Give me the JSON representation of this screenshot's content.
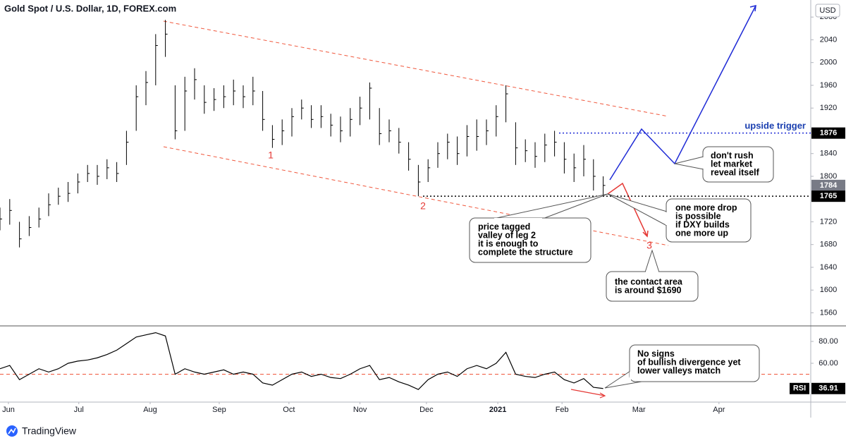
{
  "chart_data": [
    {
      "type": "ohlc",
      "title": "Gold Spot / U.S. Dollar, 1D, FOREX.com",
      "currency": "USD",
      "color": "#000000",
      "x": [
        0,
        3,
        6,
        9,
        12,
        15,
        18,
        21,
        24,
        27,
        30,
        33,
        36,
        39,
        42,
        45,
        48,
        51,
        54,
        57,
        60,
        63,
        66,
        69,
        72,
        75,
        78,
        81,
        84,
        87,
        90,
        93,
        96,
        99,
        102,
        105,
        108,
        111,
        114,
        117,
        120,
        123,
        126,
        129,
        132,
        135,
        138,
        141,
        144,
        147,
        150,
        153,
        156,
        159,
        162,
        165,
        168,
        171,
        174,
        177,
        180,
        183,
        186
      ],
      "high": [
        1745,
        1760,
        1720,
        1730,
        1745,
        1770,
        1780,
        1790,
        1805,
        1820,
        1820,
        1830,
        1825,
        1880,
        1960,
        1985,
        2050,
        2075,
        1960,
        1975,
        1990,
        1960,
        1955,
        1960,
        1970,
        1960,
        1975,
        1950,
        1890,
        1900,
        1920,
        1935,
        1925,
        1925,
        1910,
        1905,
        1920,
        1940,
        1965,
        1920,
        1900,
        1885,
        1860,
        1820,
        1830,
        1860,
        1875,
        1870,
        1890,
        1900,
        1900,
        1925,
        1960,
        1895,
        1865,
        1860,
        1875,
        1880,
        1860,
        1840,
        1855,
        1830,
        1800
      ],
      "low": [
        1705,
        1715,
        1675,
        1695,
        1710,
        1730,
        1750,
        1755,
        1770,
        1790,
        1785,
        1795,
        1790,
        1820,
        1880,
        1925,
        1960,
        2010,
        1865,
        1880,
        1935,
        1910,
        1915,
        1920,
        1925,
        1920,
        1925,
        1880,
        1850,
        1855,
        1870,
        1900,
        1885,
        1885,
        1870,
        1860,
        1870,
        1890,
        1900,
        1855,
        1860,
        1840,
        1810,
        1765,
        1790,
        1815,
        1830,
        1820,
        1835,
        1845,
        1855,
        1870,
        1895,
        1820,
        1825,
        1815,
        1825,
        1835,
        1805,
        1790,
        1800,
        1775,
        1765
      ],
      "close": [
        1725,
        1740,
        1690,
        1710,
        1725,
        1750,
        1765,
        1770,
        1790,
        1805,
        1800,
        1815,
        1805,
        1860,
        1940,
        1965,
        2030,
        2050,
        1880,
        1950,
        1970,
        1930,
        1935,
        1940,
        1950,
        1940,
        1950,
        1900,
        1865,
        1880,
        1905,
        1920,
        1900,
        1905,
        1890,
        1880,
        1900,
        1920,
        1955,
        1875,
        1880,
        1860,
        1830,
        1790,
        1815,
        1840,
        1860,
        1840,
        1870,
        1870,
        1880,
        1905,
        1945,
        1850,
        1845,
        1835,
        1855,
        1860,
        1830,
        1815,
        1830,
        1800,
        1784
      ],
      "xlim": [
        0,
        250
      ],
      "xticks": [
        {
          "value": 2.6,
          "label": "Jun"
        },
        {
          "value": 24.3,
          "label": "Jul"
        },
        {
          "value": 46.3,
          "label": "Aug"
        },
        {
          "value": 67.6,
          "label": "Sep"
        },
        {
          "value": 89.1,
          "label": "Oct"
        },
        {
          "value": 111,
          "label": "Nov"
        },
        {
          "value": 131.5,
          "label": "Dec"
        },
        {
          "value": 153.5,
          "label": "2021"
        },
        {
          "value": 173.3,
          "label": "Feb"
        },
        {
          "value": 197,
          "label": "Mar"
        },
        {
          "value": 221.7,
          "label": "Apr"
        }
      ],
      "ylim": [
        1537,
        2110
      ],
      "yticks": [
        1560,
        1600,
        1640,
        1680,
        1720,
        1800,
        1840,
        1920,
        1960,
        2000,
        2040,
        2080
      ],
      "last_price": 1784,
      "upside_trigger": {
        "label": "upside trigger",
        "value": 1876
      },
      "valley_level": 1765,
      "wave_labels": [
        "1",
        "2",
        "3"
      ],
      "notes": {
        "valley": [
          "price tagged",
          "valley of leg 2",
          "it is enough to",
          "complete the structure"
        ],
        "drop": [
          "one more drop",
          "is possible",
          "if DXY builds",
          "one more up"
        ],
        "contact": [
          "the contact area",
          "is around $1690"
        ],
        "rush": [
          "don't rush",
          "let market",
          "reveal itself"
        ]
      }
    },
    {
      "type": "line",
      "name": "RSI",
      "color": "#000000",
      "x": [
        0,
        3,
        6,
        9,
        12,
        15,
        18,
        21,
        24,
        27,
        30,
        33,
        36,
        39,
        42,
        45,
        48,
        51,
        54,
        57,
        60,
        63,
        66,
        69,
        72,
        75,
        78,
        81,
        84,
        87,
        90,
        93,
        96,
        99,
        102,
        105,
        108,
        111,
        114,
        117,
        120,
        123,
        126,
        129,
        132,
        135,
        138,
        141,
        144,
        147,
        150,
        153,
        156,
        159,
        162,
        165,
        168,
        171,
        174,
        177,
        180,
        183,
        186
      ],
      "values": [
        55,
        58,
        45,
        50,
        55,
        52,
        55,
        60,
        62,
        63,
        65,
        68,
        72,
        78,
        84,
        86,
        88,
        85,
        50,
        55,
        52,
        50,
        52,
        54,
        50,
        52,
        50,
        42,
        40,
        45,
        50,
        52,
        48,
        50,
        47,
        46,
        50,
        55,
        58,
        45,
        47,
        43,
        40,
        36,
        45,
        50,
        52,
        48,
        55,
        58,
        55,
        60,
        70,
        50,
        48,
        47,
        50,
        52,
        45,
        42,
        46,
        38,
        36.91
      ],
      "xlim": [
        0,
        250
      ],
      "ylim": [
        24.5,
        94.2
      ],
      "yticks": [
        {
          "value": 60,
          "label": "60.00"
        },
        {
          "value": 80,
          "label": "80.00"
        }
      ],
      "level": 50,
      "note": [
        "No signs",
        "of bullish divergence yet",
        "lower valleys match"
      ]
    }
  ],
  "footer": {
    "brand": "TradingView"
  }
}
